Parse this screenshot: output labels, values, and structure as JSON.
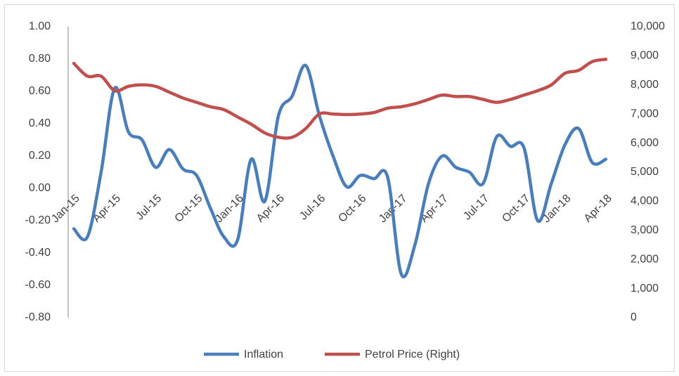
{
  "chart_data": {
    "type": "line",
    "categories": [
      "Jan-15",
      null,
      null,
      "Apr-15",
      null,
      null,
      "Jul-15",
      null,
      null,
      "Oct-15",
      null,
      null,
      "Jan-16",
      null,
      null,
      "Apr-16",
      null,
      null,
      "Jul-16",
      null,
      null,
      "Oct-16",
      null,
      null,
      "Jan-17",
      null,
      null,
      "Apr-17",
      null,
      null,
      "Jul-17",
      null,
      null,
      "Oct-17",
      null,
      null,
      "Jan-18",
      null,
      null,
      "Apr-18"
    ],
    "series": [
      {
        "name": "Inflation",
        "color": "#4a7ebb",
        "values": [
          -0.25,
          -0.3,
          0.1,
          0.62,
          0.35,
          0.3,
          0.13,
          0.24,
          0.12,
          0.08,
          -0.12,
          -0.3,
          -0.32,
          0.18,
          -0.08,
          0.45,
          0.57,
          0.76,
          0.45,
          0.2,
          0.01,
          0.08,
          0.06,
          0.07,
          -0.53,
          -0.35,
          0.03,
          0.2,
          0.13,
          0.1,
          0.03,
          0.32,
          0.26,
          0.25,
          -0.2,
          0.03,
          0.27,
          0.37,
          0.16,
          0.18
        ]
      },
      {
        "name": "Petrol Price (Right)",
        "color": "#c0504d",
        "axis": "y2",
        "values": [
          8740,
          8300,
          8300,
          7800,
          7950,
          8000,
          7950,
          7750,
          7550,
          7400,
          7250,
          7150,
          6900,
          6650,
          6350,
          6200,
          6200,
          6500,
          7000,
          7000,
          6980,
          7000,
          7050,
          7200,
          7250,
          7350,
          7500,
          7650,
          7600,
          7600,
          7500,
          7400,
          7500,
          7650,
          7800,
          8000,
          8400,
          8500,
          8800,
          8880
        ]
      }
    ],
    "ylim": [
      -0.8,
      1.0
    ],
    "yticks": [
      {
        "value": 1.0,
        "label": "1.00"
      },
      {
        "value": 0.8,
        "label": "0.80"
      },
      {
        "value": 0.6,
        "label": "0.60"
      },
      {
        "value": 0.4,
        "label": "0.40"
      },
      {
        "value": 0.2,
        "label": "0.20"
      },
      {
        "value": 0,
        "label": "0.00"
      },
      {
        "value": -0.2,
        "label": "-0.20"
      },
      {
        "value": -0.4,
        "label": "-0.40"
      },
      {
        "value": -0.6,
        "label": "-0.60"
      },
      {
        "value": -0.8,
        "label": "-0.80"
      }
    ],
    "y2lim": [
      0,
      10000
    ],
    "y2ticks": [
      {
        "value": 10000,
        "label": "10,000"
      },
      {
        "value": 9000,
        "label": "9,000"
      },
      {
        "value": 8000,
        "label": "8,000"
      },
      {
        "value": 7000,
        "label": "7,000"
      },
      {
        "value": 6000,
        "label": "6,000"
      },
      {
        "value": 5000,
        "label": "5,000"
      },
      {
        "value": 4000,
        "label": "4,000"
      },
      {
        "value": 3000,
        "label": "3,000"
      },
      {
        "value": 2000,
        "label": "2,000"
      },
      {
        "value": 1000,
        "label": "1,000"
      },
      0
    ],
    "legend": "bottom"
  }
}
